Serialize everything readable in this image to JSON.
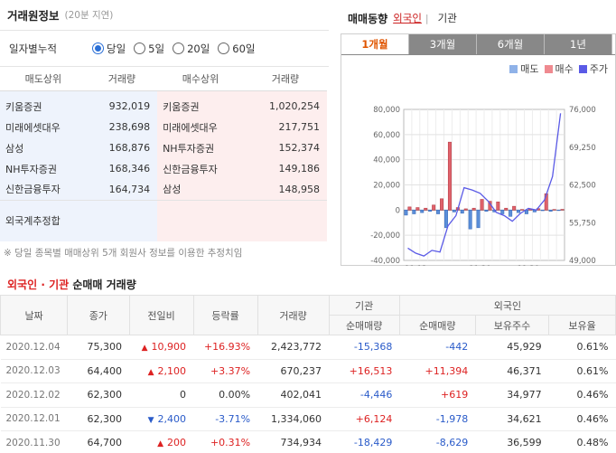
{
  "broker_panel": {
    "title": "거래원정보",
    "subtitle": "(20분 지연)",
    "period_label": "일자별누적",
    "period_options": [
      "당일",
      "5일",
      "20일",
      "60일"
    ],
    "selected_period": "당일",
    "headers": {
      "sell_broker": "매도상위",
      "sell_volume": "거래량",
      "buy_broker": "매수상위",
      "buy_volume": "거래량"
    },
    "rows": [
      {
        "sell_broker": "키움증권",
        "sell_volume": "932,019",
        "buy_broker": "키움증권",
        "buy_volume": "1,020,254"
      },
      {
        "sell_broker": "미래에셋대우",
        "sell_volume": "238,698",
        "buy_broker": "미래에셋대우",
        "buy_volume": "217,751"
      },
      {
        "sell_broker": "삼성",
        "sell_volume": "168,876",
        "buy_broker": "NH투자증권",
        "buy_volume": "152,374"
      },
      {
        "sell_broker": "NH투자증권",
        "sell_volume": "168,346",
        "buy_broker": "신한금융투자",
        "buy_volume": "149,186"
      },
      {
        "sell_broker": "신한금융투자",
        "sell_volume": "164,734",
        "buy_broker": "삼성",
        "buy_volume": "148,958"
      }
    ],
    "foreign_label": "외국계추정합",
    "note": "※ 당일 종목별 매매상위 5개 회원사 정보를 이용한 추정치임"
  },
  "trend_panel": {
    "title": "매매동향",
    "links": [
      "외국인",
      "기관"
    ],
    "active_link": "외국인",
    "tabs": [
      "1개월",
      "3개월",
      "6개월",
      "1년"
    ],
    "active_tab": "1개월",
    "colors": {
      "sell": "#5b8fd9",
      "buy": "#e0626b",
      "price": "#5a5ae6",
      "tab_active": "#e05500"
    }
  },
  "chart_data": {
    "type": "bar",
    "legend": [
      "매도",
      "매수",
      "주가"
    ],
    "x_tick_labels": [
      "11.12",
      "11.20",
      "11.30"
    ],
    "left_ticks": [
      "80,000",
      "60,000",
      "40,000",
      "20,000",
      "0",
      "-20,000",
      "-40,000"
    ],
    "right_ticks": [
      "76,000",
      "69,250",
      "62,500",
      "55,750",
      "49,000"
    ],
    "y_left_range": [
      -40000,
      80000
    ],
    "y_right_range": [
      49000,
      76000
    ],
    "grid": true,
    "legend_position": "top-right",
    "sell": [
      -4000,
      -3000,
      -2000,
      -1000,
      -3000,
      -14000,
      -1500,
      -2500,
      -15000,
      -14000,
      -1000,
      -1500,
      -3000,
      -5000,
      -2000,
      -3000,
      -1500,
      -500,
      -1000,
      -400
    ],
    "buy": [
      2500,
      2000,
      1500,
      4000,
      9000,
      54000,
      2000,
      1000,
      1500,
      8500,
      7000,
      6500,
      1500,
      3000,
      500,
      1000,
      1200,
      13000,
      500,
      600
    ],
    "price": [
      51200,
      50300,
      49800,
      50800,
      50500,
      55200,
      57000,
      62000,
      61600,
      61000,
      59600,
      57600,
      57000,
      56000,
      57400,
      58300,
      58000,
      59800,
      64000,
      75300
    ]
  },
  "flow_table": {
    "title_foreign": "외국인",
    "title_dot": "·",
    "title_inst": "기관",
    "title_rest": "순매매 거래량",
    "headers": {
      "date": "날짜",
      "close": "종가",
      "change": "전일비",
      "rate": "등락률",
      "volume": "거래량",
      "inst_group": "기관",
      "inst_net": "순매매량",
      "foreign_group": "외국인",
      "foreign_net": "순매매량",
      "foreign_hold": "보유주수",
      "foreign_ratio": "보유율"
    },
    "rows": [
      {
        "date": "2020.12.04",
        "close": "75,300",
        "dir": "up",
        "change": "10,900",
        "rate": "+16.93%",
        "volume": "2,423,772",
        "inst_net": "-15,368",
        "foreign_net": "-442",
        "foreign_hold": "45,929",
        "foreign_ratio": "0.61%"
      },
      {
        "date": "2020.12.03",
        "close": "64,400",
        "dir": "up",
        "change": "2,100",
        "rate": "+3.37%",
        "volume": "670,237",
        "inst_net": "+16,513",
        "foreign_net": "+11,394",
        "foreign_hold": "46,371",
        "foreign_ratio": "0.61%"
      },
      {
        "date": "2020.12.02",
        "close": "62,300",
        "dir": "flat",
        "change": "0",
        "rate": "0.00%",
        "volume": "402,041",
        "inst_net": "-4,446",
        "foreign_net": "+619",
        "foreign_hold": "34,977",
        "foreign_ratio": "0.46%"
      },
      {
        "date": "2020.12.01",
        "close": "62,300",
        "dir": "down",
        "change": "2,400",
        "rate": "-3.71%",
        "volume": "1,334,060",
        "inst_net": "+6,124",
        "foreign_net": "-1,978",
        "foreign_hold": "34,621",
        "foreign_ratio": "0.46%"
      },
      {
        "date": "2020.11.30",
        "close": "64,700",
        "dir": "up",
        "change": "200",
        "rate": "+0.31%",
        "volume": "734,934",
        "inst_net": "-18,429",
        "foreign_net": "-8,629",
        "foreign_hold": "36,599",
        "foreign_ratio": "0.48%"
      }
    ]
  }
}
